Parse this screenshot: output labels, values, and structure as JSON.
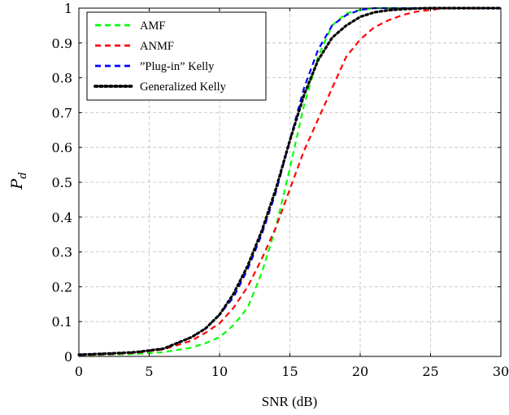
{
  "chart_data": {
    "type": "line",
    "xlabel": "SNR (dB)",
    "ylabel_main": "P",
    "ylabel_sub": "d",
    "xlim": [
      0,
      30
    ],
    "ylim": [
      0,
      1
    ],
    "xticks": [
      0,
      5,
      10,
      15,
      20,
      25,
      30
    ],
    "yticks": [
      0,
      0.1,
      0.2,
      0.3,
      0.4,
      0.5,
      0.6,
      0.7,
      0.8,
      0.9,
      1
    ],
    "ytick_labels": [
      "0",
      "0.1",
      "0.2",
      "0.3",
      "0.4",
      "0.5",
      "0.6",
      "0.7",
      "0.8",
      "0.9",
      "1"
    ],
    "grid": true,
    "legend_position": "top-left",
    "series": [
      {
        "name": "AMF",
        "color": "#00ff00",
        "style": "dashed",
        "x": [
          0,
          2,
          4,
          6,
          8,
          9,
          10,
          11,
          12,
          13,
          14,
          15,
          16,
          17,
          18,
          19,
          20,
          21,
          22,
          24,
          26,
          28,
          30
        ],
        "y": [
          0.003,
          0.005,
          0.007,
          0.012,
          0.025,
          0.038,
          0.055,
          0.09,
          0.14,
          0.24,
          0.37,
          0.54,
          0.72,
          0.86,
          0.95,
          0.985,
          0.995,
          1.0,
          1.0,
          1.0,
          1.0,
          1.0,
          1.0
        ]
      },
      {
        "name": "ANMF",
        "color": "#ff0000",
        "style": "dashed",
        "x": [
          0,
          2,
          4,
          6,
          8,
          9,
          10,
          11,
          12,
          13,
          14,
          15,
          16,
          17,
          18,
          19,
          20,
          21,
          22,
          23,
          24,
          25,
          26,
          28,
          30
        ],
        "y": [
          0.004,
          0.006,
          0.01,
          0.02,
          0.045,
          0.068,
          0.095,
          0.14,
          0.2,
          0.28,
          0.37,
          0.48,
          0.59,
          0.68,
          0.77,
          0.86,
          0.91,
          0.945,
          0.965,
          0.98,
          0.99,
          0.995,
          1.0,
          1.0,
          1.0
        ]
      },
      {
        "name": "”Plug-in” Kelly",
        "color": "#0000ff",
        "style": "dashed",
        "x": [
          0,
          2,
          4,
          6,
          8,
          9,
          10,
          11,
          12,
          13,
          14,
          15,
          16,
          17,
          18,
          19,
          20,
          21,
          22,
          24,
          26,
          28,
          30
        ],
        "y": [
          0.005,
          0.008,
          0.012,
          0.022,
          0.055,
          0.08,
          0.12,
          0.17,
          0.25,
          0.35,
          0.47,
          0.62,
          0.77,
          0.88,
          0.95,
          0.98,
          0.995,
          1.0,
          1.0,
          1.0,
          1.0,
          1.0,
          1.0
        ]
      },
      {
        "name": "Generalized Kelly",
        "color": "#000000",
        "style": "dotted",
        "x": [
          0,
          2,
          4,
          6,
          8,
          9,
          10,
          11,
          12,
          13,
          14,
          15,
          16,
          17,
          18,
          19,
          20,
          21,
          22,
          23,
          24,
          25,
          26,
          28,
          30
        ],
        "y": [
          0.005,
          0.008,
          0.012,
          0.022,
          0.055,
          0.08,
          0.12,
          0.18,
          0.26,
          0.36,
          0.48,
          0.62,
          0.75,
          0.85,
          0.915,
          0.95,
          0.975,
          0.988,
          0.994,
          0.997,
          0.999,
          1.0,
          1.0,
          1.0,
          1.0
        ]
      }
    ]
  }
}
